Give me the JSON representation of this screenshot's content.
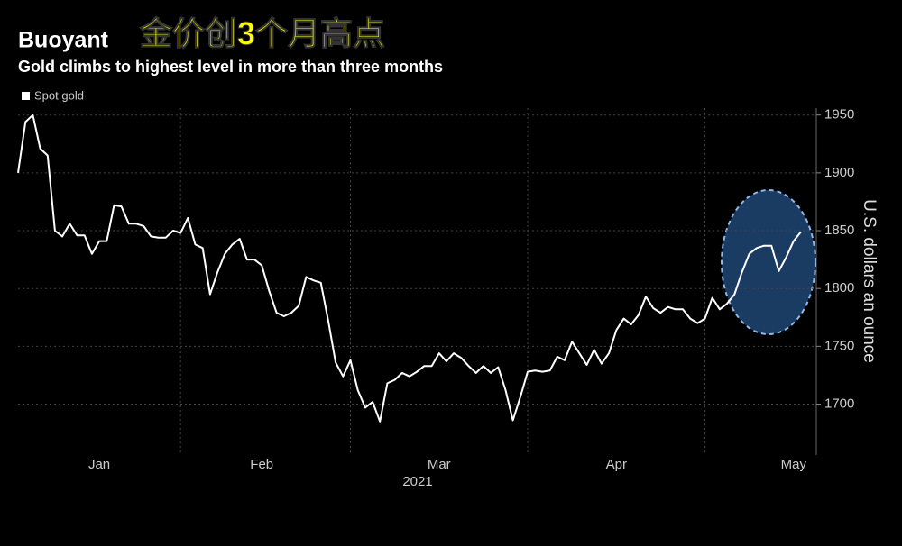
{
  "chart_data": {
    "type": "line",
    "title": "Buoyant",
    "annotation": "金价创3个月高点",
    "subtitle": "Gold climbs to highest level in more than three months",
    "y_label": "U.S. dollars an ounce",
    "x_label": "2021",
    "categories": [
      null,
      null,
      null,
      null,
      null,
      null,
      null,
      null,
      null,
      null,
      null,
      "Jan",
      null,
      null,
      null,
      null,
      null,
      null,
      null,
      null,
      null,
      null,
      null,
      null,
      null,
      null,
      null,
      null,
      null,
      null,
      null,
      null,
      null,
      "Feb",
      null,
      null,
      null,
      null,
      null,
      null,
      null,
      null,
      null,
      null,
      null,
      null,
      null,
      null,
      null,
      null,
      null,
      null,
      null,
      null,
      null,
      null,
      null,
      "Mar",
      null,
      null,
      null,
      null,
      null,
      null,
      null,
      null,
      null,
      null,
      null,
      null,
      null,
      null,
      null,
      null,
      null,
      null,
      null,
      null,
      null,
      null,
      null,
      "Apr",
      null,
      null,
      null,
      null,
      null,
      null,
      null,
      null,
      null,
      null,
      null,
      null,
      null,
      null,
      null,
      null,
      null,
      null,
      null,
      null,
      null,
      null,
      null,
      "May",
      null
    ],
    "series": [
      {
        "name": "Spot gold",
        "color": "#ffffff",
        "values": [
          1900,
          1944,
          1950,
          1921,
          1915,
          1850,
          1845,
          1856,
          1846,
          1846,
          1830,
          1841,
          1841,
          1872,
          1871,
          1856,
          1856,
          1854,
          1845,
          1844,
          1844,
          1850,
          1848,
          1861,
          1838,
          1835,
          1795,
          1814,
          1830,
          1838,
          1843,
          1825,
          1825,
          1820,
          1798,
          1779,
          1776,
          1779,
          1785,
          1810,
          1807,
          1805,
          1772,
          1736,
          1724,
          1738,
          1712,
          1697,
          1702,
          1685,
          1718,
          1721,
          1727,
          1724,
          1728,
          1733,
          1733,
          1744,
          1737,
          1744,
          1740,
          1733,
          1727,
          1733,
          1727,
          1732,
          1712,
          1686,
          1706,
          1728,
          1729,
          1728,
          1729,
          1741,
          1738,
          1754,
          1744,
          1734,
          1747,
          1735,
          1744,
          1764,
          1774,
          1769,
          1777,
          1793,
          1783,
          1779,
          1784,
          1782,
          1782,
          1774,
          1770,
          1774,
          1792,
          1782,
          1787,
          1795,
          1814,
          1830,
          1835,
          1837,
          1837,
          1815,
          1827,
          1841,
          1849
        ]
      }
    ],
    "ylim": [
      1656,
      1956
    ],
    "yticks": [
      1700,
      1750,
      1800,
      1850,
      1900,
      1950
    ],
    "grid": true
  }
}
